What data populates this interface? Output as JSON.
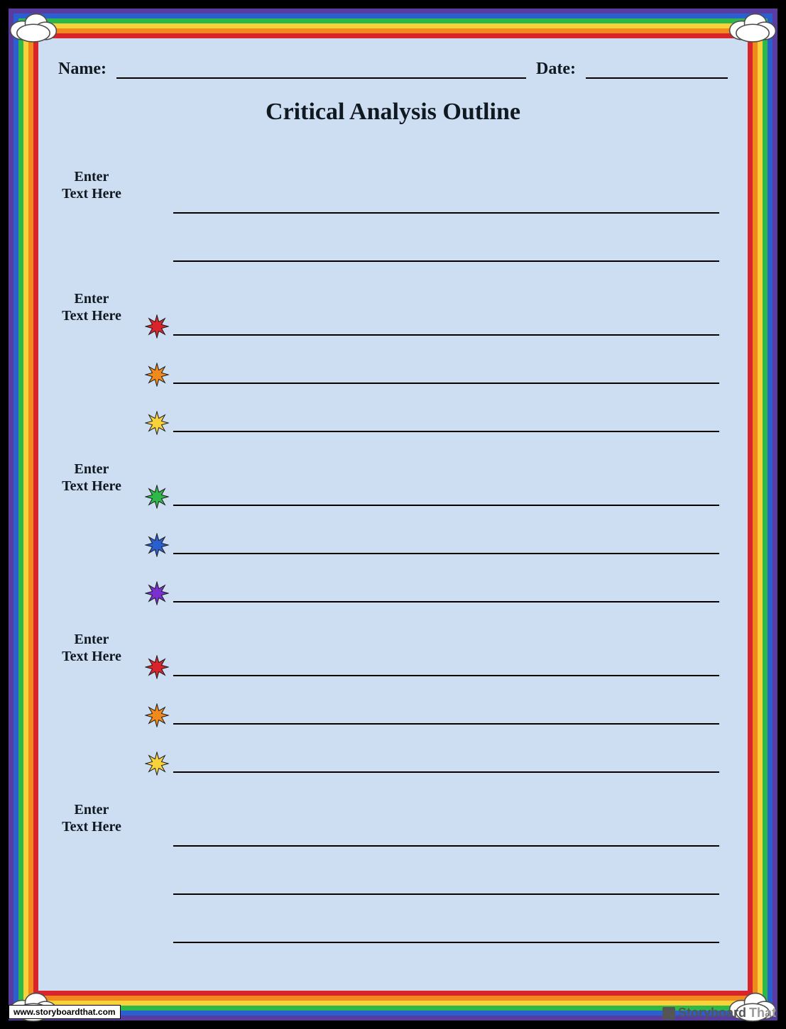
{
  "header": {
    "name_label": "Name:",
    "date_label": "Date:"
  },
  "title": "Critical Analysis Outline",
  "rainbow_colors": [
    "#5a3ca0",
    "#2a5fd0",
    "#2fb84a",
    "#f7d23a",
    "#f08a1d",
    "#d8242a"
  ],
  "background_color": "#cdddf2",
  "star_outline": "#1a1a1a",
  "sections": [
    {
      "label": "Enter\nText Here",
      "lines": [
        {
          "star": null
        },
        {
          "star": null
        }
      ]
    },
    {
      "label": "Enter\nText Here",
      "lines": [
        {
          "star": "#d8242a"
        },
        {
          "star": "#f08a1d"
        },
        {
          "star": "#f7d23a"
        }
      ]
    },
    {
      "label": "Enter\nText Here",
      "lines": [
        {
          "star": "#2fb84a"
        },
        {
          "star": "#2a5fd0"
        },
        {
          "star": "#7a2fd0"
        }
      ]
    },
    {
      "label": "Enter\nText Here",
      "lines": [
        {
          "star": "#d8242a"
        },
        {
          "star": "#f08a1d"
        },
        {
          "star": "#f7d23a"
        }
      ]
    },
    {
      "label": "Enter\nText Here",
      "lines": [
        {
          "star": null
        },
        {
          "star": null
        },
        {
          "star": null
        }
      ]
    }
  ],
  "footer": {
    "url": "www.storyboardthat.com",
    "brand_a": "Storyboard",
    "brand_b": "That"
  }
}
